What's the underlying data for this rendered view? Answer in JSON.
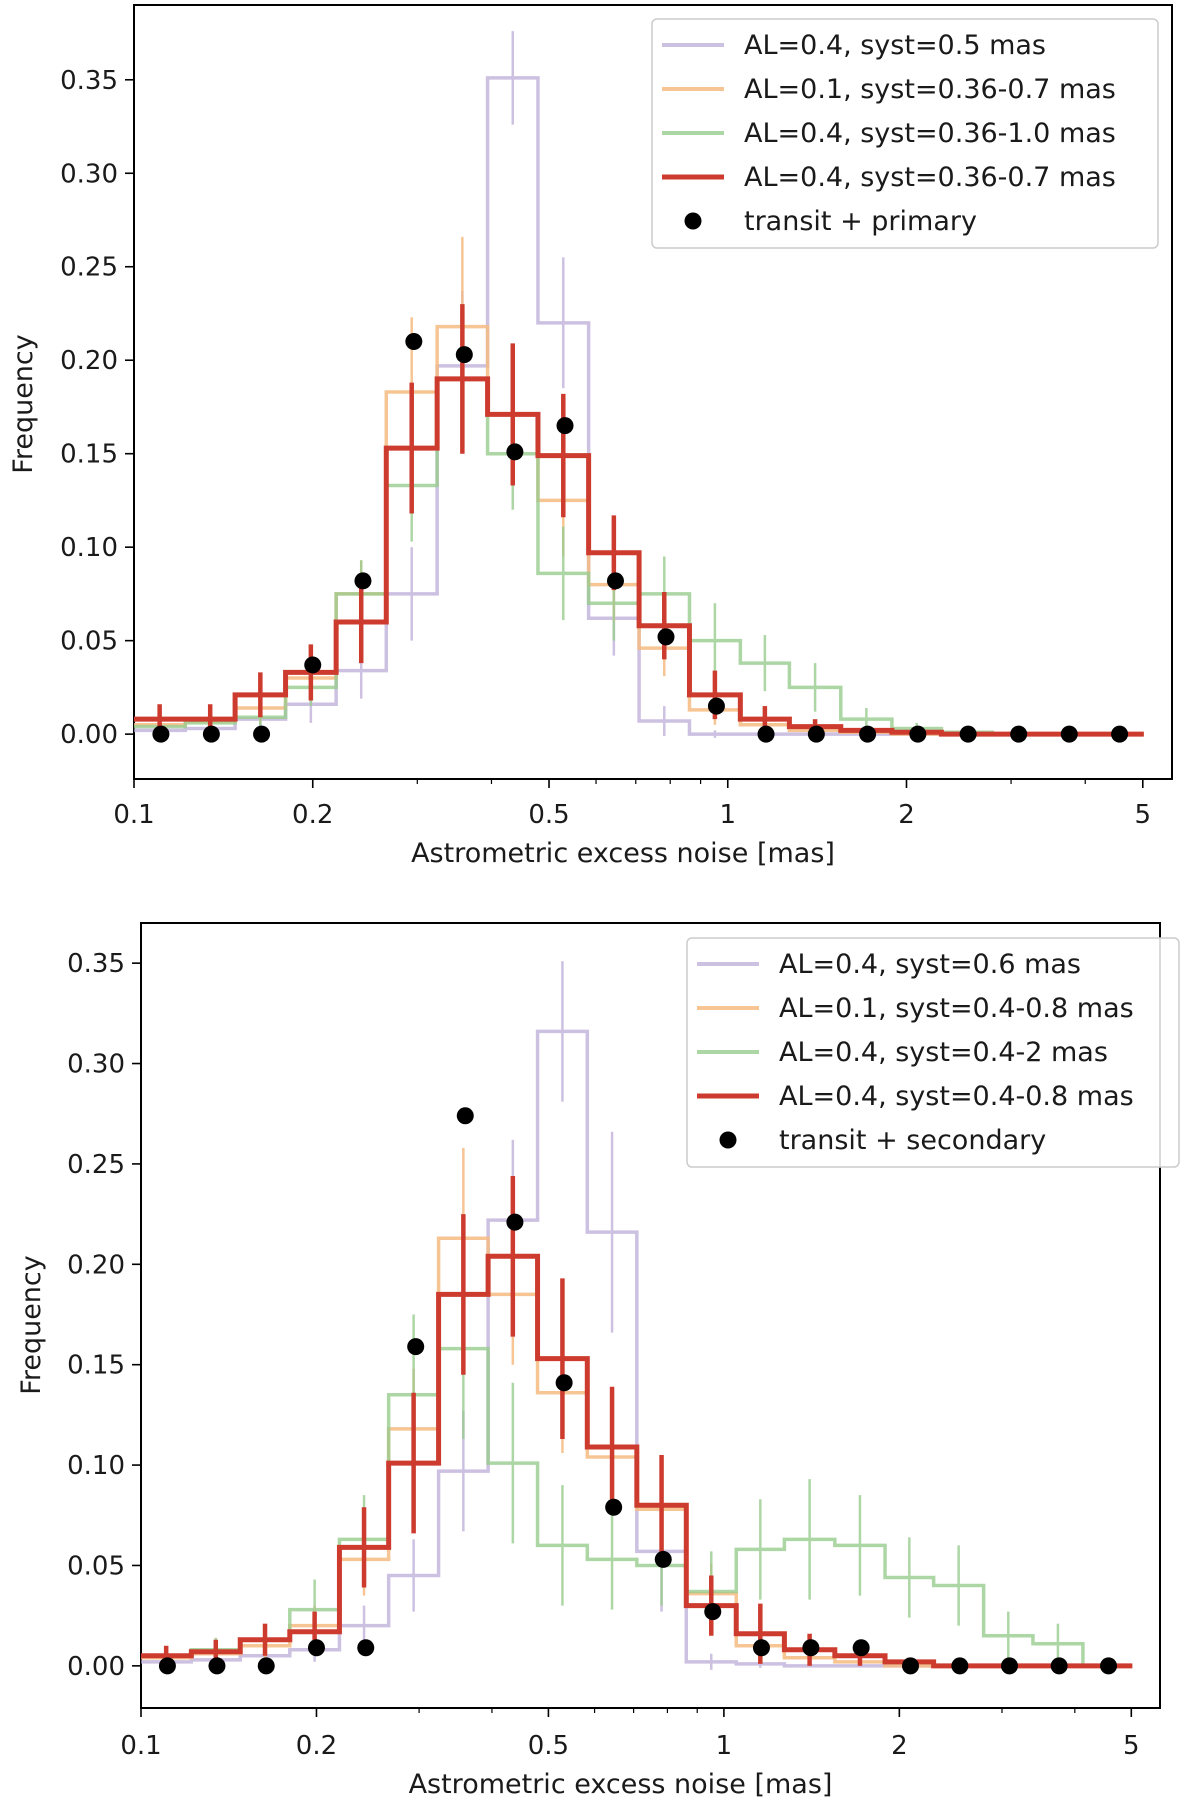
{
  "chart_data": [
    {
      "type": "line",
      "subtype": "step-histogram",
      "xscale": "log",
      "xlim": [
        0.1,
        5.6
      ],
      "ylim": [
        -0.024,
        0.39
      ],
      "xlabel": "Astrometric excess noise [mas]",
      "ylabel": "Frequency",
      "xticks": [
        0.1,
        0.2,
        0.5,
        1,
        2,
        5
      ],
      "xtick_labels": [
        "0.1",
        "0.2",
        "0.5",
        "1",
        "2",
        "5"
      ],
      "yticks": [
        0,
        0.05,
        0.1,
        0.15,
        0.2,
        0.25,
        0.3,
        0.35
      ],
      "ytick_labels": [
        "0.00",
        "0.05",
        "0.10",
        "0.15",
        "0.20",
        "0.25",
        "0.30",
        "0.35"
      ],
      "legend_position": "top-right",
      "bin_edges": [
        0.1,
        0.122,
        0.148,
        0.18,
        0.219,
        0.266,
        0.324,
        0.394,
        0.479,
        0.583,
        0.709,
        0.862,
        1.05,
        1.27,
        1.55,
        1.89,
        2.29,
        2.79,
        3.39,
        4.13,
        5.02
      ],
      "series": [
        {
          "name": "AL=0.4, syst=0.5 mas",
          "color": "#b8a7d6",
          "opacity": 0.7,
          "width": 3.5,
          "values": [
            0.002,
            0.003,
            0.008,
            0.016,
            0.034,
            0.075,
            0.197,
            0.351,
            0.22,
            0.062,
            0.007,
            0.0,
            0.0,
            0.0,
            0.0,
            0.0,
            0.0,
            0.0,
            0.0,
            0.0
          ],
          "errors": [
            0.003,
            0.004,
            0.007,
            0.01,
            0.015,
            0.025,
            0.04,
            0.025,
            0.035,
            0.02,
            0.008,
            0.002,
            0.001,
            0,
            0,
            0,
            0,
            0,
            0,
            0
          ]
        },
        {
          "name": "AL=0.1, syst=0.36-0.7 mas",
          "color": "#f6bb82",
          "opacity": 0.85,
          "width": 3.5,
          "values": [
            0.005,
            0.007,
            0.014,
            0.03,
            0.075,
            0.183,
            0.218,
            0.171,
            0.125,
            0.08,
            0.046,
            0.013,
            0.005,
            0.002,
            0.001,
            0.0,
            0.0,
            0.0,
            0.0,
            0.0
          ],
          "errors": [
            0.004,
            0.005,
            0.008,
            0.01,
            0.018,
            0.04,
            0.048,
            0.035,
            0.03,
            0.02,
            0.015,
            0.008,
            0.005,
            0.003,
            0,
            0,
            0,
            0,
            0,
            0
          ]
        },
        {
          "name": "AL=0.4, syst=0.36-1.0 mas",
          "color": "#99cc8f",
          "opacity": 0.8,
          "width": 3.5,
          "values": [
            0.004,
            0.006,
            0.009,
            0.025,
            0.075,
            0.133,
            0.19,
            0.15,
            0.086,
            0.07,
            0.075,
            0.05,
            0.038,
            0.025,
            0.008,
            0.003,
            0.001,
            0.0,
            0.0,
            0.0
          ],
          "errors": [
            0.004,
            0.005,
            0.006,
            0.01,
            0.018,
            0.03,
            0.03,
            0.03,
            0.025,
            0.02,
            0.02,
            0.02,
            0.015,
            0.013,
            0.006,
            0.003,
            0,
            0,
            0,
            0
          ]
        },
        {
          "name": "AL=0.4, syst=0.36-0.7 mas",
          "color": "#cc3b2e",
          "opacity": 1.0,
          "width": 5,
          "values": [
            0.008,
            0.008,
            0.021,
            0.033,
            0.06,
            0.153,
            0.19,
            0.171,
            0.149,
            0.097,
            0.058,
            0.021,
            0.008,
            0.004,
            0.002,
            0.001,
            0.0,
            0.0,
            0.0,
            0.0
          ],
          "errors": [
            0.008,
            0.008,
            0.012,
            0.015,
            0.022,
            0.035,
            0.04,
            0.038,
            0.033,
            0.02,
            0.018,
            0.013,
            0.007,
            0.004,
            0.002,
            0.001,
            0,
            0,
            0,
            0
          ]
        }
      ],
      "points": {
        "name": "transit + primary",
        "color": "#000000",
        "x": [
          0.111,
          0.135,
          0.164,
          0.2,
          0.243,
          0.296,
          0.36,
          0.438,
          0.532,
          0.647,
          0.787,
          0.957,
          1.16,
          1.41,
          1.72,
          2.09,
          2.54,
          3.09,
          3.76,
          4.57
        ],
        "y": [
          0.0,
          0.0,
          0.0,
          0.037,
          0.082,
          0.21,
          0.203,
          0.151,
          0.165,
          0.082,
          0.052,
          0.015,
          0.0,
          0.0,
          0.0,
          0.0,
          0.0,
          0.0,
          0.0,
          0.0
        ]
      }
    },
    {
      "type": "line",
      "subtype": "step-histogram",
      "xscale": "log",
      "xlim": [
        0.1,
        5.6
      ],
      "ylim": [
        -0.021,
        0.37
      ],
      "xlabel": "Astrometric excess noise [mas]",
      "ylabel": "Frequency",
      "xticks": [
        0.1,
        0.2,
        0.5,
        1,
        2,
        5
      ],
      "xtick_labels": [
        "0.1",
        "0.2",
        "0.5",
        "1",
        "2",
        "5"
      ],
      "yticks": [
        0,
        0.05,
        0.1,
        0.15,
        0.2,
        0.25,
        0.3,
        0.35
      ],
      "ytick_labels": [
        "0.00",
        "0.05",
        "0.10",
        "0.15",
        "0.20",
        "0.25",
        "0.30",
        "0.35"
      ],
      "legend_position": "top-right",
      "bin_edges": [
        0.1,
        0.122,
        0.148,
        0.18,
        0.219,
        0.266,
        0.324,
        0.394,
        0.479,
        0.583,
        0.709,
        0.862,
        1.05,
        1.27,
        1.55,
        1.89,
        2.29,
        2.79,
        3.39,
        4.13,
        5.02
      ],
      "series": [
        {
          "name": "AL=0.4, syst=0.6 mas",
          "color": "#b8a7d6",
          "opacity": 0.7,
          "width": 3.5,
          "values": [
            0.002,
            0.003,
            0.005,
            0.008,
            0.02,
            0.045,
            0.097,
            0.222,
            0.316,
            0.216,
            0.057,
            0.002,
            0.001,
            0.0,
            0.0,
            0.0,
            0.0,
            0.0,
            0.0,
            0.0
          ],
          "errors": [
            0.002,
            0.003,
            0.004,
            0.006,
            0.01,
            0.018,
            0.03,
            0.04,
            0.035,
            0.05,
            0.03,
            0.004,
            0.002,
            0,
            0,
            0,
            0,
            0,
            0,
            0
          ]
        },
        {
          "name": "AL=0.1, syst=0.4-0.8 mas",
          "color": "#f6bb82",
          "opacity": 0.85,
          "width": 3.5,
          "values": [
            0.004,
            0.006,
            0.01,
            0.02,
            0.053,
            0.118,
            0.213,
            0.185,
            0.136,
            0.104,
            0.078,
            0.036,
            0.01,
            0.004,
            0.002,
            0.0,
            0.0,
            0.0,
            0.0,
            0.0
          ],
          "errors": [
            0.003,
            0.005,
            0.006,
            0.01,
            0.018,
            0.03,
            0.045,
            0.035,
            0.03,
            0.025,
            0.02,
            0.015,
            0.008,
            0.004,
            0,
            0,
            0,
            0,
            0,
            0
          ]
        },
        {
          "name": "AL=0.4, syst=0.4-2 mas",
          "color": "#99cc8f",
          "opacity": 0.8,
          "width": 3.5,
          "values": [
            0.005,
            0.008,
            0.013,
            0.028,
            0.063,
            0.135,
            0.158,
            0.101,
            0.06,
            0.053,
            0.05,
            0.037,
            0.058,
            0.063,
            0.06,
            0.044,
            0.04,
            0.015,
            0.011,
            0.0
          ],
          "errors": [
            0.004,
            0.006,
            0.007,
            0.015,
            0.022,
            0.04,
            0.045,
            0.04,
            0.03,
            0.025,
            0.02,
            0.02,
            0.025,
            0.03,
            0.025,
            0.02,
            0.02,
            0.012,
            0.01,
            0
          ]
        },
        {
          "name": "AL=0.4, syst=0.4-0.8 mas",
          "color": "#cc3b2e",
          "opacity": 1.0,
          "width": 5,
          "values": [
            0.005,
            0.007,
            0.013,
            0.017,
            0.059,
            0.101,
            0.185,
            0.204,
            0.153,
            0.109,
            0.08,
            0.03,
            0.016,
            0.008,
            0.005,
            0.002,
            0.0,
            0.0,
            0.0,
            0.0
          ],
          "errors": [
            0.005,
            0.006,
            0.008,
            0.01,
            0.02,
            0.035,
            0.04,
            0.04,
            0.04,
            0.03,
            0.025,
            0.015,
            0.015,
            0.008,
            0.005,
            0.002,
            0,
            0,
            0,
            0
          ]
        }
      ],
      "points": {
        "name": "transit + secondary",
        "color": "#000000",
        "x": [
          0.111,
          0.135,
          0.164,
          0.2,
          0.243,
          0.296,
          0.36,
          0.438,
          0.532,
          0.647,
          0.787,
          0.957,
          1.16,
          1.41,
          1.72,
          2.09,
          2.54,
          3.09,
          3.76,
          4.57
        ],
        "y": [
          0.0,
          0.0,
          0.0,
          0.009,
          0.009,
          0.159,
          0.274,
          0.221,
          0.141,
          0.079,
          0.053,
          0.027,
          0.009,
          0.009,
          0.009,
          0.0,
          0.0,
          0.0,
          0.0,
          0.0
        ]
      }
    }
  ]
}
